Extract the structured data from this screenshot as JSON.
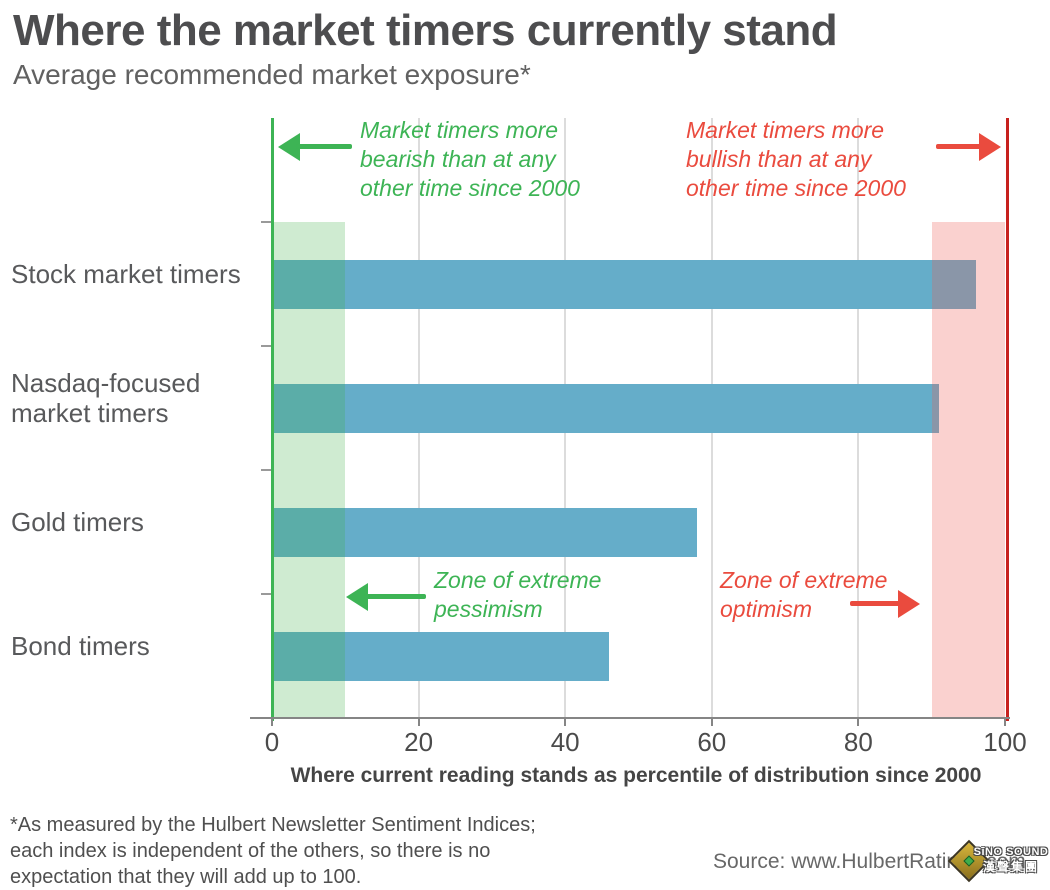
{
  "header": {
    "title": "Where the market timers currently stand",
    "subtitle": "Average recommended market exposure*"
  },
  "chart_data": {
    "type": "bar",
    "orientation": "horizontal",
    "title": "Where the market timers currently stand",
    "subtitle": "Average recommended market exposure*",
    "categories": [
      "Stock market timers",
      "Nasdaq-focused\nmarket timers",
      "Gold timers",
      "Bond timers"
    ],
    "values": [
      96,
      91,
      58,
      46
    ],
    "xlabel": "Where current reading stands as percentile of distribution since 2000",
    "xlim": [
      0,
      100
    ],
    "xticks": [
      0,
      20,
      40,
      60,
      80,
      100
    ],
    "grid": "vertical-gridlines-at-20-40-60-80",
    "legend": "none",
    "bar_color": "#65adc9",
    "zones": [
      {
        "name": "extreme-pessimism-zone",
        "from": 0,
        "to": 10,
        "fill": "rgba(62,177,70,0.25)",
        "edge_line_color": "#3db455",
        "edge_at": 0
      },
      {
        "name": "extreme-optimism-zone",
        "from": 90,
        "to": 100,
        "fill": "rgba(238,88,82,0.28)",
        "edge_line_color": "#c7211e",
        "edge_at": 100
      }
    ],
    "annotations": {
      "top_left": {
        "text": "Market timers more\nbearish than at any\nother time since 2000",
        "color": "#3db455",
        "arrow": "left"
      },
      "top_right": {
        "text": "Market timers more\nbullish than at any\nother time since 2000",
        "color": "#ea4b3e",
        "arrow": "right"
      },
      "mid_left": {
        "text": "Zone of extreme\npessimism",
        "color": "#3db455",
        "arrow": "left"
      },
      "mid_right": {
        "text": "Zone of extreme\noptimism",
        "color": "#ea4b3e",
        "arrow": "right"
      }
    }
  },
  "footnote": {
    "text": "*As measured by the Hulbert Newsletter Sentiment Indices;\neach index is independent of the others, so there is no\nexpectation that they will add up to 100."
  },
  "source": {
    "text": "Source: www.HulbertRatings.com"
  },
  "watermark": {
    "line1": "SiNO SOUND",
    "line2": "漢聲集團",
    "icon": "diamond-gem-logo"
  },
  "colors": {
    "green_accent": "#3db455",
    "red_accent": "#ea4b3e",
    "red_line": "#c7211e",
    "bar_blue": "#65adc9",
    "gridline": "#dcdcdc",
    "axis": "#858585",
    "title_ink": "#4d4d4f"
  }
}
